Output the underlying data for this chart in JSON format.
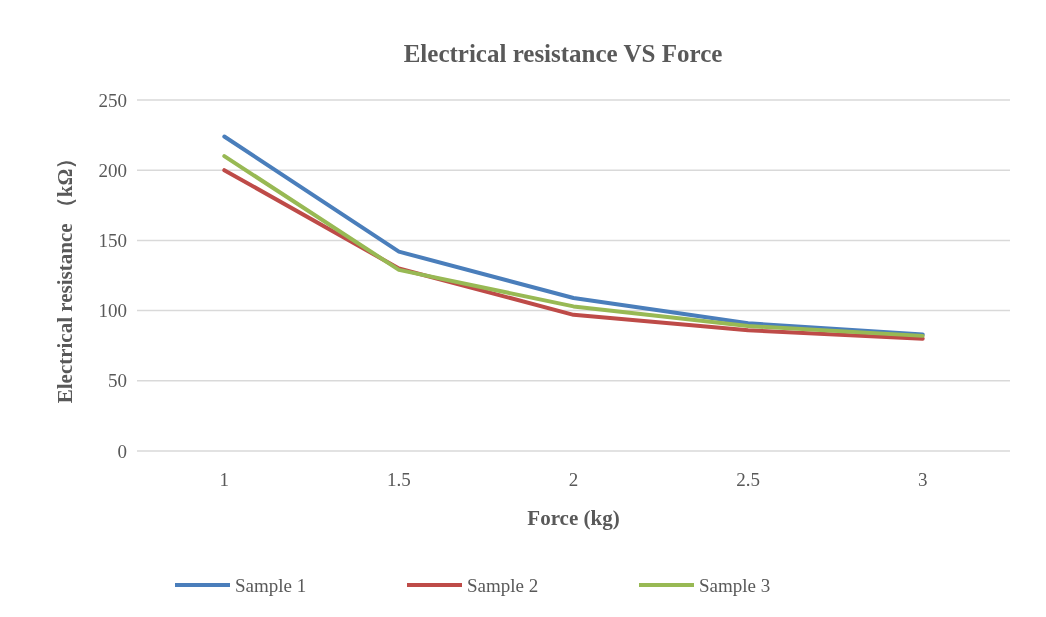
{
  "chart_data": {
    "type": "line",
    "title": "Electrical resistance VS Force",
    "xlabel": "Force (kg)",
    "ylabel": "Electrical resistance （kΩ）",
    "categories": [
      "1",
      "1.5",
      "2",
      "2.5",
      "3"
    ],
    "series": [
      {
        "name": "Sample 1",
        "color": "#4a7ebb",
        "values": [
          224,
          142,
          109,
          91,
          83
        ]
      },
      {
        "name": "Sample 2",
        "color": "#be4b48",
        "values": [
          200,
          130,
          97,
          86,
          80
        ]
      },
      {
        "name": "Sample 3",
        "color": "#98b954",
        "values": [
          210,
          129,
          103,
          89,
          82
        ]
      }
    ],
    "ylim": [
      0,
      250
    ],
    "yticks": [
      0,
      50,
      100,
      150,
      200,
      250
    ],
    "grid": "y",
    "legend": "bottom",
    "marker": "none",
    "line_style": "solid"
  }
}
